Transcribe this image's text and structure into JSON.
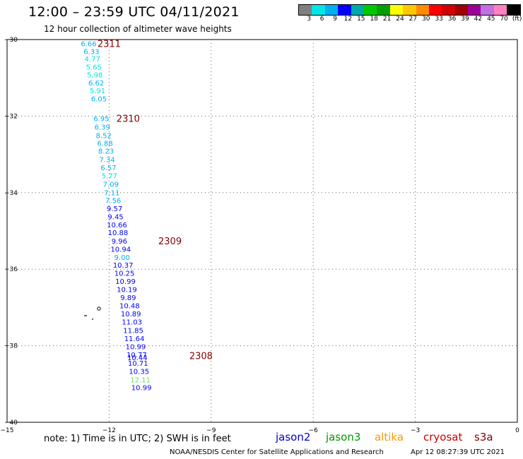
{
  "header": {
    "title": "12:00 – 23:59 UTC 04/11/2021",
    "subtitle": "12 hour collection of altimeter wave heights"
  },
  "colorbar": {
    "colors": [
      "#808080",
      "#00e5e5",
      "#00b0f0",
      "#0000ff",
      "#00aaaa",
      "#00c800",
      "#00a000",
      "#ffff00",
      "#ffc800",
      "#ff8c00",
      "#ff0000",
      "#d20000",
      "#a00000",
      "#9b009b",
      "#c070e0",
      "#ff80c0",
      "#000000"
    ],
    "labels": [
      "3",
      "6",
      "9",
      "12",
      "15",
      "18",
      "21",
      "24",
      "27",
      "30",
      "33",
      "36",
      "39",
      "42",
      "45",
      "70",
      "(ft)"
    ]
  },
  "footer": {
    "note": "note:  1)  Time is in UTC;  2)  SWH is in feet",
    "satellites": [
      {
        "name": "jason2",
        "color": "#0000cc"
      },
      {
        "name": "jason3",
        "color": "#009900"
      },
      {
        "name": "altika",
        "color": "#ff9900"
      },
      {
        "name": "cryosat",
        "color": "#cc0000"
      },
      {
        "name": "s3a",
        "color": "#800000"
      }
    ],
    "credit": "NOAA/NESDIS Center for Satellite Applications and Research",
    "timestamp": "Apr 12 08:27:39 UTC 2021"
  },
  "chart_data": {
    "type": "scatter",
    "title": "12:00 – 23:59 UTC 04/11/2021",
    "subtitle": "12 hour collection of altimeter wave heights",
    "xlabel": "",
    "ylabel": "",
    "xlim": [
      -15,
      0
    ],
    "ylim": [
      -40,
      -30
    ],
    "x_ticks": [
      -15,
      -12,
      -9,
      -6,
      -3,
      0
    ],
    "y_ticks": [
      -30,
      -32,
      -34,
      -36,
      -38,
      -40
    ],
    "grid": true,
    "points": [
      {
        "lon": -12.6,
        "lat": -30.1,
        "value": "6.66",
        "color": "#00b0f0"
      },
      {
        "lon": -12.52,
        "lat": -30.3,
        "value": "6.33",
        "color": "#00b0f0"
      },
      {
        "lon": -12.49,
        "lat": -30.5,
        "value": "4.77",
        "color": "#00e5e5"
      },
      {
        "lon": -12.45,
        "lat": -30.71,
        "value": "5.65",
        "color": "#00e5e5"
      },
      {
        "lon": -12.42,
        "lat": -30.91,
        "value": "5.98",
        "color": "#00e5e5"
      },
      {
        "lon": -12.38,
        "lat": -31.13,
        "value": "6.62",
        "color": "#00b0f0"
      },
      {
        "lon": -12.34,
        "lat": -31.33,
        "value": "5.91",
        "color": "#00e5e5"
      },
      {
        "lon": -12.3,
        "lat": -31.54,
        "value": "6.05",
        "color": "#00b0f0"
      },
      {
        "lon": -12.23,
        "lat": -32.06,
        "value": "6.95",
        "color": "#00b0f0"
      },
      {
        "lon": -12.2,
        "lat": -32.28,
        "value": "6.39",
        "color": "#00b0f0"
      },
      {
        "lon": -12.16,
        "lat": -32.5,
        "value": "8.52",
        "color": "#00b0f0"
      },
      {
        "lon": -12.12,
        "lat": -32.7,
        "value": "6.88",
        "color": "#00b0f0"
      },
      {
        "lon": -12.09,
        "lat": -32.91,
        "value": "8.23",
        "color": "#00b0f0"
      },
      {
        "lon": -12.06,
        "lat": -33.13,
        "value": "7.34",
        "color": "#00b0f0"
      },
      {
        "lon": -12.02,
        "lat": -33.34,
        "value": "6.57",
        "color": "#00b0f0"
      },
      {
        "lon": -11.99,
        "lat": -33.55,
        "value": "5.77",
        "color": "#00e5e5"
      },
      {
        "lon": -11.95,
        "lat": -33.77,
        "value": "7.09",
        "color": "#00b0f0"
      },
      {
        "lon": -11.92,
        "lat": -33.99,
        "value": "7.11",
        "color": "#00b0f0"
      },
      {
        "lon": -11.88,
        "lat": -34.2,
        "value": "7.56",
        "color": "#00b0f0"
      },
      {
        "lon": -11.84,
        "lat": -34.41,
        "value": "9.57",
        "color": "#0000ff"
      },
      {
        "lon": -11.81,
        "lat": -34.62,
        "value": "9.45",
        "color": "#0000ff"
      },
      {
        "lon": -11.77,
        "lat": -34.83,
        "value": "10.66",
        "color": "#0000ff"
      },
      {
        "lon": -11.74,
        "lat": -35.04,
        "value": "10.88",
        "color": "#0000ff"
      },
      {
        "lon": -11.7,
        "lat": -35.26,
        "value": "9.96",
        "color": "#0000ff"
      },
      {
        "lon": -11.66,
        "lat": -35.47,
        "value": "10.94",
        "color": "#0000ff"
      },
      {
        "lon": -11.62,
        "lat": -35.68,
        "value": "9.00",
        "color": "#00b0f0"
      },
      {
        "lon": -11.59,
        "lat": -35.89,
        "value": "10.37",
        "color": "#0000ff"
      },
      {
        "lon": -11.55,
        "lat": -36.1,
        "value": "10.25",
        "color": "#0000ff"
      },
      {
        "lon": -11.52,
        "lat": -36.31,
        "value": "10.99",
        "color": "#0000ff"
      },
      {
        "lon": -11.48,
        "lat": -36.52,
        "value": "10.19",
        "color": "#0000ff"
      },
      {
        "lon": -11.44,
        "lat": -36.73,
        "value": "9.89",
        "color": "#0000ff"
      },
      {
        "lon": -11.4,
        "lat": -36.95,
        "value": "10.48",
        "color": "#0000ff"
      },
      {
        "lon": -11.36,
        "lat": -37.16,
        "value": "10.89",
        "color": "#0000ff"
      },
      {
        "lon": -11.33,
        "lat": -37.37,
        "value": "11.03",
        "color": "#0000ff"
      },
      {
        "lon": -11.29,
        "lat": -37.59,
        "value": "11.85",
        "color": "#0000ff"
      },
      {
        "lon": -11.26,
        "lat": -37.8,
        "value": "11.64",
        "color": "#0000ff"
      },
      {
        "lon": -11.22,
        "lat": -38.02,
        "value": "10.99",
        "color": "#0000ff"
      },
      {
        "lon": -11.19,
        "lat": -38.23,
        "value": "10.77",
        "color": "#0000ff"
      },
      {
        "lon": -11.17,
        "lat": -38.3,
        "value": "10.44",
        "color": "#0000ff"
      },
      {
        "lon": -11.15,
        "lat": -38.45,
        "value": "10.71",
        "color": "#0000ff"
      },
      {
        "lon": -11.12,
        "lat": -38.66,
        "value": "10.35",
        "color": "#0000ff"
      },
      {
        "lon": -11.08,
        "lat": -38.88,
        "value": "12.11",
        "color": "#66dd66"
      },
      {
        "lon": -11.05,
        "lat": -39.09,
        "value": "10.99",
        "color": "#0000ff"
      }
    ],
    "pass_labels": [
      {
        "lon": -12.0,
        "lat": -30.1,
        "text": "2311",
        "color": "#800000"
      },
      {
        "lon": -11.44,
        "lat": -32.06,
        "text": "2310",
        "color": "#800000"
      },
      {
        "lon": -10.21,
        "lat": -35.26,
        "text": "2309",
        "color": "#800000"
      },
      {
        "lon": -9.3,
        "lat": -38.26,
        "text": "2308",
        "color": "#800000"
      }
    ]
  }
}
